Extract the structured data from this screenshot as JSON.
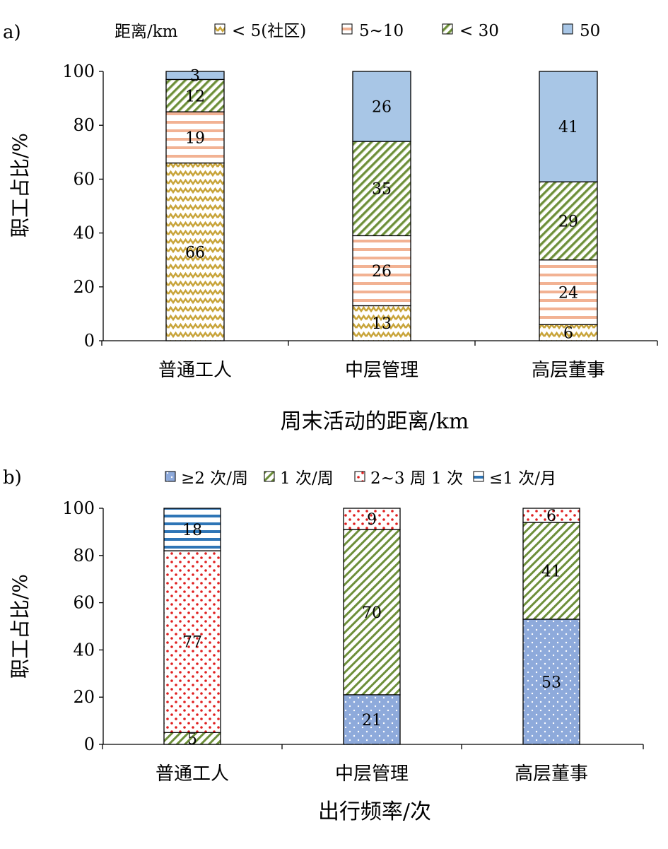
{
  "panels": [
    {
      "label": "a)",
      "legend_title": "距离/km",
      "ylabel": "职工占比/%",
      "xlabel": "周末活动的距离/km",
      "yticks": [
        "0",
        "20",
        "40",
        "60",
        "80",
        "100"
      ],
      "colors": {
        "lt5": "#c8a43a",
        "5to10": "#f2b293",
        "lt30": "#6d8f3a",
        "50": "#a8c6e6"
      },
      "chart_data": {
        "type": "bar",
        "stacked": true,
        "ylim": [
          0,
          100
        ],
        "categories": [
          "普通工人",
          "中层管理",
          "高层董事"
        ],
        "series": [
          {
            "key": "lt5",
            "name": "< 5(社区)",
            "values": [
              66,
              13,
              6
            ]
          },
          {
            "key": "5to10",
            "name": "5~10",
            "values": [
              19,
              26,
              24
            ]
          },
          {
            "key": "lt30",
            "name": "< 30",
            "values": [
              12,
              35,
              29
            ]
          },
          {
            "key": "50",
            "name": "50",
            "values": [
              3,
              26,
              41
            ]
          }
        ]
      }
    },
    {
      "label": "b)",
      "legend_title": "",
      "ylabel": "职工占比/%",
      "xlabel": "出行频率/次",
      "yticks": [
        "0",
        "20",
        "40",
        "60",
        "80",
        "100"
      ],
      "colors": {
        "ge2": "#8eaadb",
        "once": "#6d8f3a",
        "2to3": "#e02020",
        "le1": "#2e75b6"
      },
      "chart_data": {
        "type": "bar",
        "stacked": true,
        "ylim": [
          0,
          100
        ],
        "categories": [
          "普通工人",
          "中层管理",
          "高层董事"
        ],
        "series": [
          {
            "key": "ge2",
            "name": "≥2 次/周",
            "values": [
              0,
              21,
              53
            ]
          },
          {
            "key": "once",
            "name": "1 次/周",
            "values": [
              5,
              70,
              41
            ]
          },
          {
            "key": "2to3",
            "name": "2~3 周 1 次",
            "values": [
              77,
              9,
              6
            ]
          },
          {
            "key": "le1",
            "name": "≤1 次/月",
            "values": [
              18,
              0,
              0
            ]
          }
        ]
      }
    }
  ]
}
